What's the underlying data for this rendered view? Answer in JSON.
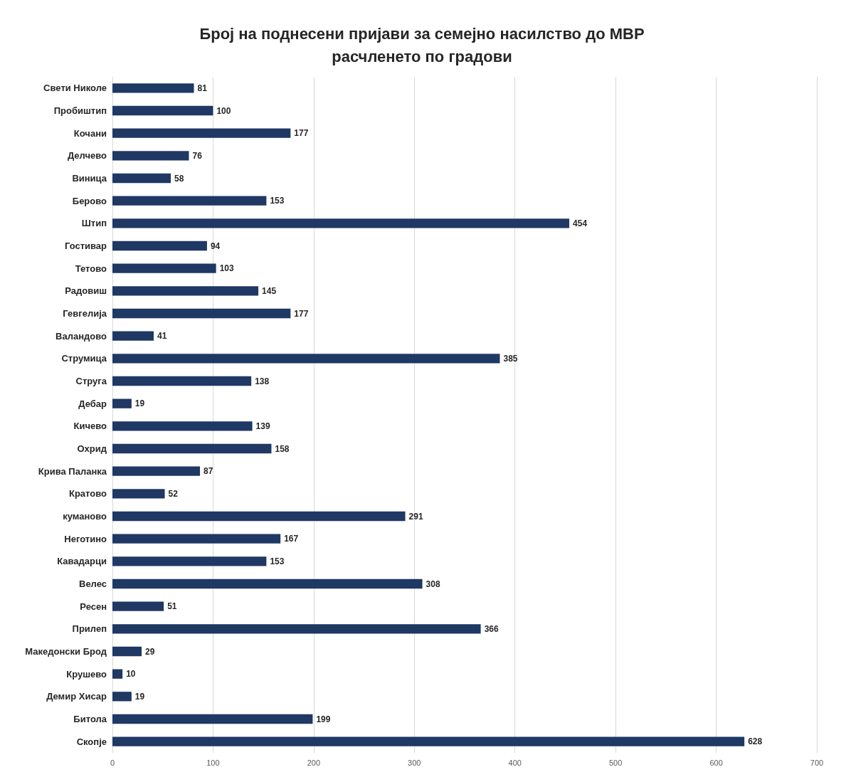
{
  "chart_data": {
    "type": "bar",
    "orientation": "horizontal",
    "title": "Број на поднесени пријави за семејно насилство до МВР\nрасчленето по градови",
    "categories": [
      "Свети Николе",
      "Пробиштип",
      "Кочани",
      "Делчево",
      "Виница",
      "Берово",
      "Штип",
      "Гостивар",
      "Тетово",
      "Радовиш",
      "Гевгелија",
      "Валандово",
      "Струмица",
      "Струга",
      "Дебар",
      "Кичево",
      "Охрид",
      "Крива Паланка",
      "Кратово",
      "куманово",
      "Неготино",
      "Кавадарци",
      "Велес",
      "Ресен",
      "Прилеп",
      "Македонски Брод",
      "Крушево",
      "Демир Хисар",
      "Битола",
      "Скопје"
    ],
    "values": [
      81,
      100,
      177,
      76,
      58,
      153,
      454,
      94,
      103,
      145,
      177,
      41,
      385,
      138,
      19,
      139,
      158,
      87,
      52,
      291,
      167,
      153,
      308,
      51,
      366,
      29,
      10,
      19,
      199,
      628
    ],
    "color": "#1f3864",
    "xlim": [
      0,
      700
    ],
    "xticks": [
      0,
      100,
      200,
      300,
      400,
      500,
      600,
      700
    ],
    "grid": "x",
    "data_labels": true
  }
}
